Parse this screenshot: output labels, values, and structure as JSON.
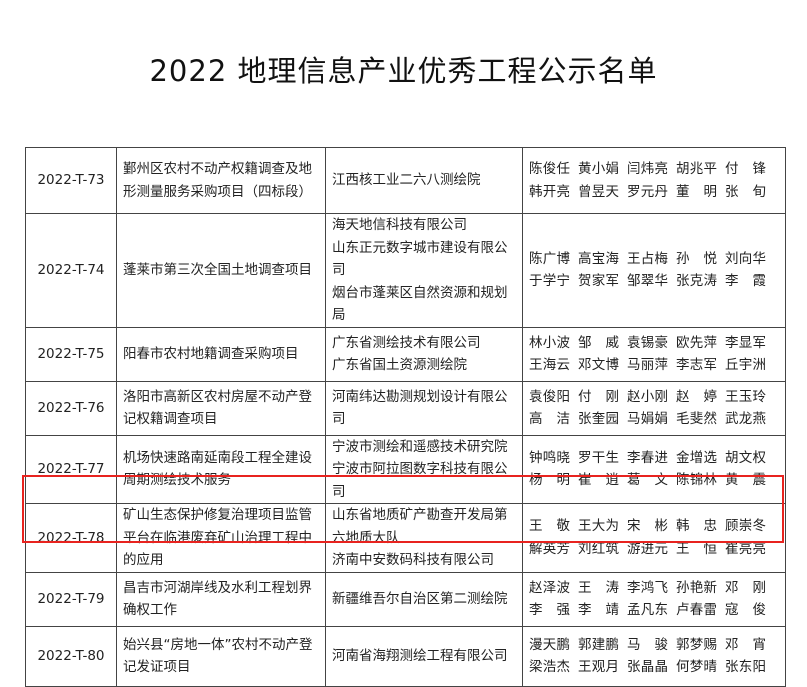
{
  "title": "2022 地理信息产业优秀工程公示名单",
  "highlight_color": "#e8231f",
  "rows": [
    {
      "code": "2022-T-73",
      "project": "鄞州区农村不动产权籍调查及地形测量服务采购项目（四标段）",
      "orgs": [
        "江西核工业二六八测绘院"
      ],
      "names": [
        [
          "陈俊任",
          "黄小娟",
          "闫炜亮",
          "胡兆平",
          "付锋"
        ],
        [
          "韩开亮",
          "曾昱天",
          "罗元丹",
          "董明",
          "张旬"
        ]
      ]
    },
    {
      "code": "2022-T-74",
      "project": "蓬莱市第三次全国土地调查项目",
      "orgs": [
        "海天地信科技有限公司",
        "山东正元数字城市建设有限公司",
        "烟台市蓬莱区自然资源和规划局"
      ],
      "names": [
        [
          "陈广博",
          "高宝海",
          "王占梅",
          "孙悦",
          "刘向华"
        ],
        [
          "于学宁",
          "贺家军",
          "邹翠华",
          "张克涛",
          "李霞"
        ]
      ]
    },
    {
      "code": "2022-T-75",
      "project": "阳春市农村地籍调查采购项目",
      "orgs": [
        "广东省测绘技术有限公司",
        "广东省国土资源测绘院"
      ],
      "names": [
        [
          "林小波",
          "邹威",
          "袁锡豪",
          "欧先萍",
          "李显军"
        ],
        [
          "王海云",
          "邓文博",
          "马丽萍",
          "李志军",
          "丘宇洲"
        ]
      ]
    },
    {
      "code": "2022-T-76",
      "project": "洛阳市高新区农村房屋不动产登记权籍调查项目",
      "orgs": [
        "河南纬达勘测规划设计有限公司"
      ],
      "names": [
        [
          "袁俊阳",
          "付刚",
          "赵小刚",
          "赵婷",
          "王玉玲"
        ],
        [
          "高洁",
          "张奎园",
          "马娟娟",
          "毛斐然",
          "武龙燕"
        ]
      ]
    },
    {
      "code": "2022-T-77",
      "project": "机场快速路南延南段工程全建设周期测绘技术服务",
      "orgs": [
        "宁波市测绘和遥感技术研究院",
        "宁波市阿拉图数字科技有限公司"
      ],
      "names": [
        [
          "钟鸣晓",
          "罗干生",
          "李春进",
          "金增选",
          "胡文权"
        ],
        [
          "杨明",
          "崔逍",
          "葛文",
          "陈锦林",
          "黄震"
        ]
      ]
    },
    {
      "code": "2022-T-78",
      "project": "矿山生态保护修复治理项目监管平台在临港废弃矿山治理工程中的应用",
      "orgs": [
        "山东省地质矿产勘查开发局第六地质大队",
        "济南中安数码科技有限公司"
      ],
      "names": [
        [
          "王敬",
          "王大为",
          "宋彬",
          "韩忠",
          "顾崇冬"
        ],
        [
          "解英芳",
          "刘红筑",
          "游进元",
          "王恒",
          "崔亮亮"
        ]
      ],
      "highlighted": true
    },
    {
      "code": "2022-T-79",
      "project": "昌吉市河湖岸线及水利工程划界确权工作",
      "orgs": [
        "新疆维吾尔自治区第二测绘院"
      ],
      "names": [
        [
          "赵泽波",
          "王涛",
          "李鸿飞",
          "孙艳新",
          "邓刚"
        ],
        [
          "李强",
          "李靖",
          "孟凡东",
          "卢春雷",
          "寇俊"
        ]
      ]
    },
    {
      "code": "2022-T-80",
      "project": "始兴县“房地一体”农村不动产登记发证项目",
      "orgs": [
        "河南省海翔测绘工程有限公司"
      ],
      "names": [
        [
          "漫天鹏",
          "郭建鹏",
          "马骏",
          "郭梦赐",
          "邓宵"
        ],
        [
          "梁浩杰",
          "王观月",
          "张晶晶",
          "何梦晴",
          "张东阳"
        ]
      ]
    }
  ]
}
